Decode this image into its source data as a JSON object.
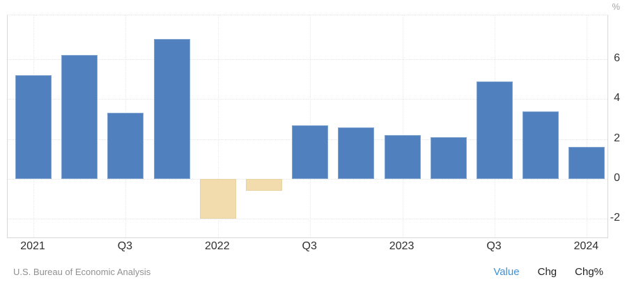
{
  "chart_data": {
    "type": "bar",
    "title": "",
    "unit_label": "%",
    "categories": [
      "Q1 2021",
      "Q2 2021",
      "Q3 2021",
      "Q4 2021",
      "Q1 2022",
      "Q2 2022",
      "Q3 2022",
      "Q4 2022",
      "Q1 2023",
      "Q2 2023",
      "Q3 2023",
      "Q4 2023",
      "Q1 2024"
    ],
    "values": [
      5.2,
      6.2,
      3.3,
      7.0,
      -2.0,
      -0.6,
      2.7,
      2.6,
      2.2,
      2.1,
      4.9,
      3.4,
      1.6
    ],
    "x_ticks": [
      {
        "index": 0,
        "label": "2021"
      },
      {
        "index": 2,
        "label": "Q3"
      },
      {
        "index": 4,
        "label": "2022"
      },
      {
        "index": 6,
        "label": "Q3"
      },
      {
        "index": 8,
        "label": "2023"
      },
      {
        "index": 10,
        "label": "Q3"
      },
      {
        "index": 12,
        "label": "2024"
      }
    ],
    "y_ticks": [
      6,
      4,
      2,
      0,
      -2
    ],
    "ylim": [
      -3,
      8.2
    ],
    "grid": true,
    "legend": "none",
    "positive_color": "#5081be",
    "positive_border": "#83a5d2",
    "negative_color": "#f2dcae",
    "negative_border": "#ead3a2"
  },
  "footer": {
    "source": "U.S. Bureau of Economic Analysis",
    "links": [
      {
        "label": "Value",
        "color": "#3d91d6"
      },
      {
        "label": "Chg",
        "color": "#1f1f1f"
      },
      {
        "label": "Chg%",
        "color": "#1f1f1f"
      }
    ]
  }
}
